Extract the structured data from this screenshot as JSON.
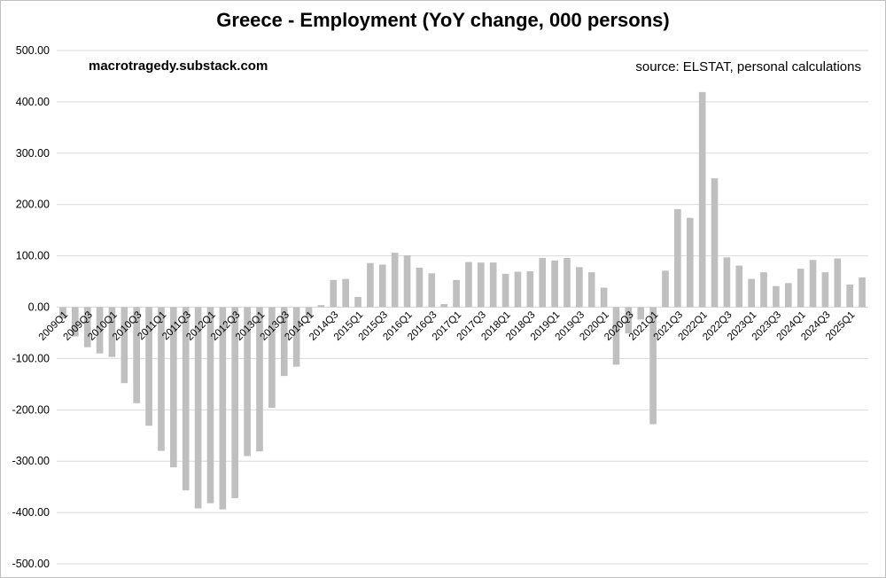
{
  "chart_data": {
    "type": "bar",
    "title": "Greece - Employment (YoY change, 000 persons)",
    "watermark": "macrotragedy.substack.com",
    "source": "source: ELSTAT, personal calculations",
    "xlabel": "",
    "ylabel": "",
    "ylim": [
      -500,
      500
    ],
    "yticks": [
      "500.00",
      "400.00",
      "300.00",
      "200.00",
      "100.00",
      "0.00",
      "-100.00",
      "-200.00",
      "-300.00",
      "-400.00",
      "-500.00"
    ],
    "grid": true,
    "bar_color": "#bfbfbf",
    "grid_color": "#d9d9d9",
    "categories": [
      "2009Q1",
      "2009Q2",
      "2009Q3",
      "2009Q4",
      "2010Q1",
      "2010Q2",
      "2010Q3",
      "2010Q4",
      "2011Q1",
      "2011Q2",
      "2011Q3",
      "2011Q4",
      "2012Q1",
      "2012Q2",
      "2012Q3",
      "2012Q4",
      "2013Q1",
      "2013Q2",
      "2013Q3",
      "2013Q4",
      "2014Q1",
      "2014Q2",
      "2014Q3",
      "2014Q4",
      "2015Q1",
      "2015Q2",
      "2015Q3",
      "2015Q4",
      "2016Q1",
      "2016Q2",
      "2016Q3",
      "2016Q4",
      "2017Q1",
      "2017Q2",
      "2017Q3",
      "2017Q4",
      "2018Q1",
      "2018Q2",
      "2018Q3",
      "2018Q4",
      "2019Q1",
      "2019Q2",
      "2019Q3",
      "2019Q4",
      "2020Q1",
      "2020Q2",
      "2020Q3",
      "2020Q4",
      "2021Q1",
      "2021Q2",
      "2021Q3",
      "2021Q4",
      "2022Q1",
      "2022Q2",
      "2022Q3",
      "2022Q4",
      "2023Q1",
      "2023Q2",
      "2023Q3",
      "2023Q4",
      "2024Q1",
      "2024Q2",
      "2024Q3",
      "2024Q4",
      "2025Q1",
      "2025Q2"
    ],
    "visible_tick_labels": [
      "2009Q1",
      "2009Q3",
      "2010Q1",
      "2010Q3",
      "2011Q1",
      "2011Q3",
      "2012Q1",
      "2012Q3",
      "2013Q1",
      "2013Q3",
      "2014Q1",
      "2014Q3",
      "2015Q1",
      "2015Q3",
      "2016Q1",
      "2016Q3",
      "2017Q1",
      "2017Q3",
      "2018Q1",
      "2018Q3",
      "2019Q1",
      "2019Q3",
      "2020Q1",
      "2020Q3",
      "2021Q1",
      "2021Q3",
      "2022Q1",
      "2022Q3",
      "2023Q1",
      "2023Q3",
      "2024Q1",
      "2024Q3",
      "2025Q1"
    ],
    "values": [
      -22,
      -57,
      -78,
      -90,
      -97,
      -148,
      -187,
      -231,
      -280,
      -312,
      -357,
      -392,
      -382,
      -394,
      -372,
      -290,
      -281,
      -196,
      -134,
      -116,
      -20,
      4,
      53,
      55,
      20,
      86,
      83,
      106,
      101,
      77,
      66,
      6,
      53,
      88,
      87,
      87,
      65,
      69,
      70,
      96,
      91,
      96,
      78,
      68,
      38,
      -112,
      -51,
      -24,
      -228,
      71,
      191,
      174,
      419,
      251,
      97,
      81,
      55,
      68,
      41,
      47,
      75,
      92,
      68,
      95,
      44,
      58
    ]
  }
}
